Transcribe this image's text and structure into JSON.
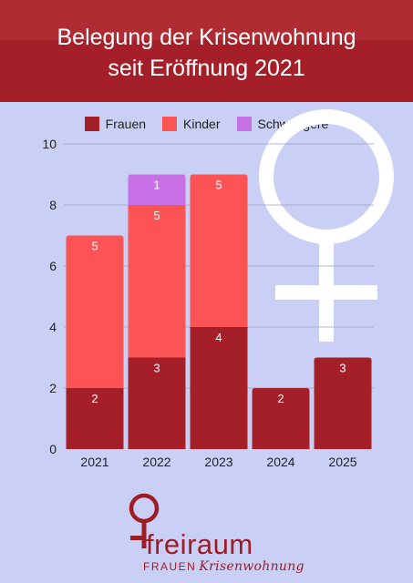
{
  "header": {
    "title_line1": "Belegung der Krisenwohnung",
    "title_line2": "seit Eröffnung 2021"
  },
  "colors": {
    "frauen": "#a51f28",
    "kinder": "#fc5454",
    "schwangere": "#c870e6",
    "header": "#a51f28",
    "background": "#c9cff5"
  },
  "logo": {
    "name": "freiraum",
    "sub_caps": "FRAUEN",
    "sub_italic": "Krisenwohnung"
  },
  "chart_data": {
    "type": "bar",
    "stacked": true,
    "title": "",
    "xlabel": "",
    "ylabel": "",
    "categories": [
      "2021",
      "2022",
      "2023",
      "2024",
      "2025"
    ],
    "series": [
      {
        "name": "Frauen",
        "values": [
          2,
          3,
          4,
          2,
          3
        ],
        "color": "#a51f28"
      },
      {
        "name": "Kinder",
        "values": [
          5,
          5,
          5,
          0,
          0
        ],
        "color": "#fc5454"
      },
      {
        "name": "Schwangere",
        "values": [
          0,
          1,
          0,
          0,
          0
        ],
        "color": "#c870e6"
      }
    ],
    "ylim": [
      0,
      10
    ],
    "yticks": [
      "0",
      "2",
      "4",
      "6",
      "8",
      "10"
    ],
    "grid": true,
    "legend": "top-center"
  }
}
